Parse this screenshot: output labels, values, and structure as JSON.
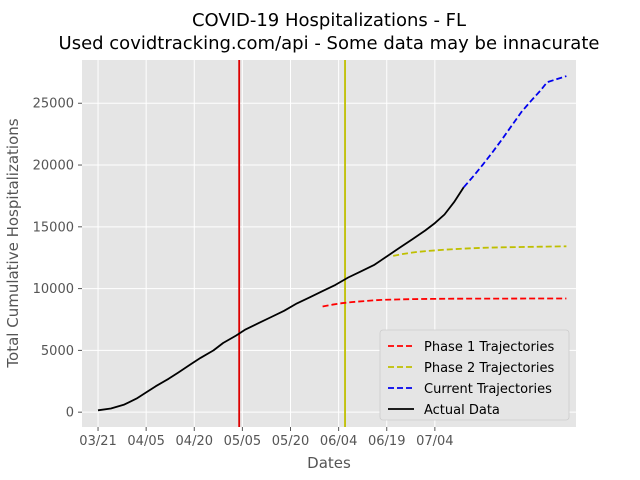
{
  "chart_data": {
    "type": "line",
    "title": "COVID-19 Hospitalizations - FL",
    "subtitle": "Used covidtracking.com/api - Some data may be innacurate",
    "xlabel": "Dates",
    "ylabel": "Total Cumulative Hospitalizations",
    "x_ticks": [
      "03/21",
      "04/05",
      "04/20",
      "05/05",
      "05/20",
      "06/04",
      "06/19",
      "07/04"
    ],
    "y_ticks": [
      0,
      5000,
      10000,
      15000,
      20000,
      25000
    ],
    "xlim": [
      "03/16",
      "08/17"
    ],
    "ylim": [
      -1200,
      28500
    ],
    "grid": true,
    "legend_position": "bottom-right",
    "vertical_lines": [
      {
        "x": "05/04",
        "color": "#dd0000"
      },
      {
        "x": "06/06",
        "color": "#bfbf00"
      }
    ],
    "series": [
      {
        "name": "Phase 1 Trajectories",
        "color": "#ff0000",
        "style": "dashed",
        "points": [
          [
            "05/30",
            8550
          ],
          [
            "06/02",
            8700
          ],
          [
            "06/05",
            8820
          ],
          [
            "06/08",
            8910
          ],
          [
            "06/12",
            8990
          ],
          [
            "06/15",
            9050
          ],
          [
            "06/18",
            9090
          ],
          [
            "06/22",
            9120
          ],
          [
            "06/27",
            9150
          ],
          [
            "07/03",
            9170
          ],
          [
            "07/10",
            9180
          ],
          [
            "07/18",
            9190
          ],
          [
            "07/26",
            9195
          ],
          [
            "08/04",
            9200
          ],
          [
            "08/14",
            9200
          ]
        ]
      },
      {
        "name": "Phase 2 Trajectories",
        "color": "#bfbf00",
        "style": "dashed",
        "points": [
          [
            "06/21",
            12650
          ],
          [
            "06/24",
            12800
          ],
          [
            "06/28",
            12950
          ],
          [
            "07/02",
            13050
          ],
          [
            "07/07",
            13150
          ],
          [
            "07/13",
            13240
          ],
          [
            "07/19",
            13300
          ],
          [
            "07/25",
            13340
          ],
          [
            "07/31",
            13370
          ],
          [
            "08/06",
            13390
          ],
          [
            "08/14",
            13420
          ]
        ]
      },
      {
        "name": "Current Trajectories",
        "color": "#0000ee",
        "style": "dashed",
        "points": [
          [
            "07/13",
            18200
          ],
          [
            "07/16",
            19100
          ],
          [
            "07/19",
            20050
          ],
          [
            "07/22",
            21050
          ],
          [
            "07/25",
            22100
          ],
          [
            "07/28",
            23200
          ],
          [
            "07/31",
            24300
          ],
          [
            "08/03",
            25200
          ],
          [
            "08/06",
            26050
          ],
          [
            "08/08",
            26700
          ],
          [
            "08/14",
            27200
          ]
        ]
      },
      {
        "name": "Actual Data",
        "color": "#000000",
        "style": "solid",
        "points": [
          [
            "03/21",
            150
          ],
          [
            "03/25",
            300
          ],
          [
            "03/29",
            600
          ],
          [
            "04/02",
            1100
          ],
          [
            "04/05",
            1600
          ],
          [
            "04/08",
            2100
          ],
          [
            "04/12",
            2700
          ],
          [
            "04/15",
            3200
          ],
          [
            "04/19",
            3900
          ],
          [
            "04/22",
            4400
          ],
          [
            "04/26",
            5000
          ],
          [
            "04/29",
            5600
          ],
          [
            "05/03",
            6200
          ],
          [
            "05/06",
            6700
          ],
          [
            "05/10",
            7200
          ],
          [
            "05/14",
            7700
          ],
          [
            "05/18",
            8200
          ],
          [
            "05/22",
            8800
          ],
          [
            "05/26",
            9300
          ],
          [
            "05/30",
            9800
          ],
          [
            "06/03",
            10300
          ],
          [
            "06/07",
            10900
          ],
          [
            "06/11",
            11400
          ],
          [
            "06/15",
            11900
          ],
          [
            "06/19",
            12600
          ],
          [
            "06/23",
            13300
          ],
          [
            "06/27",
            14000
          ],
          [
            "07/01",
            14700
          ],
          [
            "07/04",
            15300
          ],
          [
            "07/07",
            16000
          ],
          [
            "07/10",
            17000
          ],
          [
            "07/13",
            18200
          ]
        ]
      }
    ]
  }
}
